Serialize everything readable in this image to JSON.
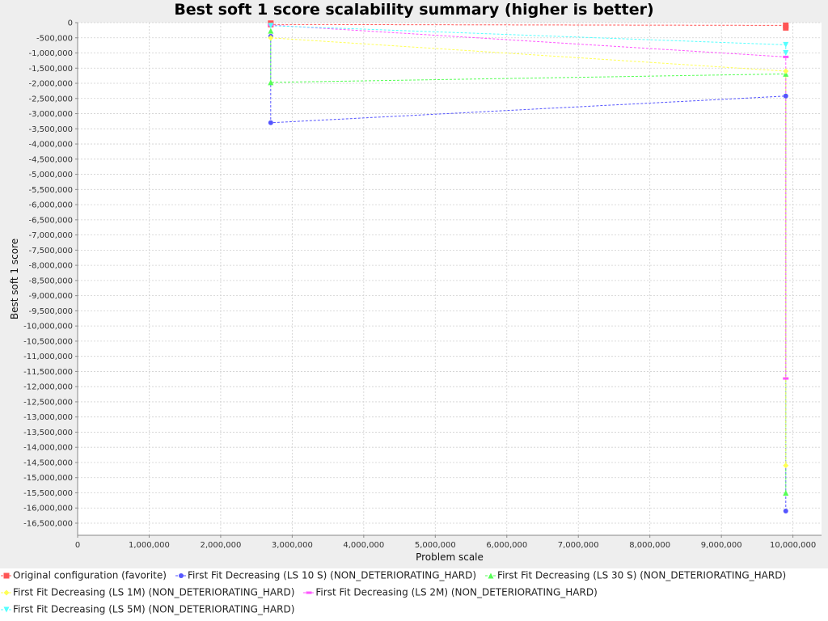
{
  "chart_data": {
    "type": "line",
    "title": "Best soft 1 score scalability summary (higher is better)",
    "xlabel": "Problem scale",
    "ylabel": "Best soft 1 score",
    "xlim": [
      0,
      10400000
    ],
    "ylim": [
      -16900000,
      0
    ],
    "x_ticks": [
      0,
      1000000,
      2000000,
      3000000,
      4000000,
      5000000,
      6000000,
      7000000,
      8000000,
      9000000,
      10000000
    ],
    "x_tick_labels": [
      "0",
      "1,000,000",
      "2,000,000",
      "3,000,000",
      "4,000,000",
      "5,000,000",
      "6,000,000",
      "7,000,000",
      "8,000,000",
      "9,000,000",
      "10,000,000"
    ],
    "y_ticks": [
      0,
      -500000,
      -1000000,
      -1500000,
      -2000000,
      -2500000,
      -3000000,
      -3500000,
      -4000000,
      -4500000,
      -5000000,
      -5500000,
      -6000000,
      -6500000,
      -7000000,
      -7500000,
      -8000000,
      -8500000,
      -9000000,
      -9500000,
      -10000000,
      -10500000,
      -11000000,
      -11500000,
      -12000000,
      -12500000,
      -13000000,
      -13500000,
      -14000000,
      -14500000,
      -15000000,
      -15500000,
      -16000000,
      -16500000
    ],
    "y_tick_labels": [
      "0",
      "-500,000",
      "-1,000,000",
      "-1,500,000",
      "-2,000,000",
      "-2,500,000",
      "-3,000,000",
      "-3,500,000",
      "-4,000,000",
      "-4,500,000",
      "-5,000,000",
      "-5,500,000",
      "-6,000,000",
      "-6,500,000",
      "-7,000,000",
      "-7,500,000",
      "-8,000,000",
      "-8,500,000",
      "-9,000,000",
      "-9,500,000",
      "-10,000,000",
      "-10,500,000",
      "-11,000,000",
      "-11,500,000",
      "-12,000,000",
      "-12,500,000",
      "-13,000,000",
      "-13,500,000",
      "-14,000,000",
      "-14,500,000",
      "-15,000,000",
      "-15,500,000",
      "-16,000,000",
      "-16,500,000"
    ],
    "grid": true,
    "legend_position": "bottom",
    "series": [
      {
        "name": "Original configuration (favorite)",
        "color": "#ff5555",
        "marker": "square",
        "points": [
          [
            2700000,
            -20000
          ],
          [
            2700000,
            -60000
          ],
          [
            9900000,
            -90000
          ],
          [
            9900000,
            -170000
          ]
        ]
      },
      {
        "name": "First Fit Decreasing (LS 10 S) (NON_DETERIORATING_HARD)",
        "color": "#5555ff",
        "marker": "circle",
        "points": [
          [
            2700000,
            -450000
          ],
          [
            2700000,
            -3300000
          ],
          [
            9900000,
            -2420000
          ],
          [
            9900000,
            -16100000
          ]
        ]
      },
      {
        "name": "First Fit Decreasing (LS 30 S) (NON_DETERIORATING_HARD)",
        "color": "#55ff55",
        "marker": "triangle-up",
        "points": [
          [
            2700000,
            -270000
          ],
          [
            2700000,
            -1970000
          ],
          [
            9900000,
            -1690000
          ],
          [
            9900000,
            -15500000
          ]
        ]
      },
      {
        "name": "First Fit Decreasing (LS 1M) (NON_DETERIORATING_HARD)",
        "color": "#ffff55",
        "marker": "diamond",
        "points": [
          [
            2700000,
            -500000
          ],
          [
            9900000,
            -1600000
          ],
          [
            9900000,
            -14600000
          ]
        ]
      },
      {
        "name": "First Fit Decreasing (LS 2M) (NON_DETERIORATING_HARD)",
        "color": "#ff55ff",
        "marker": "rect",
        "points": [
          [
            2700000,
            -80000
          ],
          [
            9900000,
            -1130000
          ],
          [
            9900000,
            -11730000
          ]
        ]
      },
      {
        "name": "First Fit Decreasing (LS 5M) (NON_DETERIORATING_HARD)",
        "color": "#55ffff",
        "marker": "triangle-down",
        "points": [
          [
            2700000,
            -100000
          ],
          [
            9900000,
            -730000
          ],
          [
            9900000,
            -1000000
          ]
        ]
      }
    ]
  }
}
